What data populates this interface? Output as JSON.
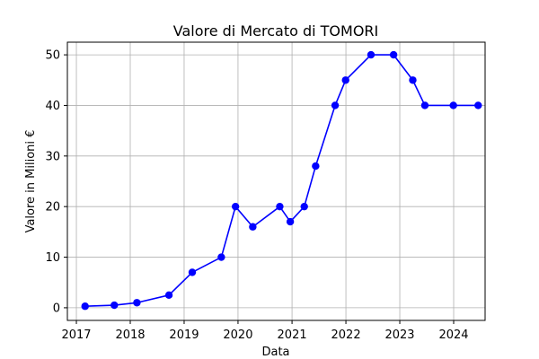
{
  "chart_data": {
    "type": "line",
    "title": "Valore di Mercato di TOMORI",
    "xlabel": "Data",
    "ylabel": "Valore in Milioni €",
    "x_axis": "date",
    "xlim": [
      "2016-11-01",
      "2024-08-01"
    ],
    "ylim": [
      -2.5,
      52.5
    ],
    "xticks": [
      "2017",
      "2018",
      "2019",
      "2020",
      "2021",
      "2022",
      "2023",
      "2024"
    ],
    "yticks": [
      0,
      10,
      20,
      30,
      40,
      50
    ],
    "grid": true,
    "series": [
      {
        "color": "#0000ff",
        "marker": "circle",
        "points": [
          {
            "x": "2017-03-01",
            "y": 0.3
          },
          {
            "x": "2017-09-15",
            "y": 0.5
          },
          {
            "x": "2018-02-15",
            "y": 1
          },
          {
            "x": "2018-09-20",
            "y": 2.5
          },
          {
            "x": "2019-02-25",
            "y": 7
          },
          {
            "x": "2019-09-10",
            "y": 10
          },
          {
            "x": "2019-12-15",
            "y": 20
          },
          {
            "x": "2020-04-10",
            "y": 16
          },
          {
            "x": "2020-10-10",
            "y": 20
          },
          {
            "x": "2020-12-20",
            "y": 17
          },
          {
            "x": "2021-03-25",
            "y": 20
          },
          {
            "x": "2021-06-10",
            "y": 28
          },
          {
            "x": "2021-10-20",
            "y": 40
          },
          {
            "x": "2021-12-30",
            "y": 45
          },
          {
            "x": "2022-06-20",
            "y": 50
          },
          {
            "x": "2022-11-20",
            "y": 50
          },
          {
            "x": "2023-03-30",
            "y": 45
          },
          {
            "x": "2023-06-20",
            "y": 40
          },
          {
            "x": "2023-12-30",
            "y": 40
          },
          {
            "x": "2024-06-15",
            "y": 40
          }
        ]
      }
    ]
  }
}
